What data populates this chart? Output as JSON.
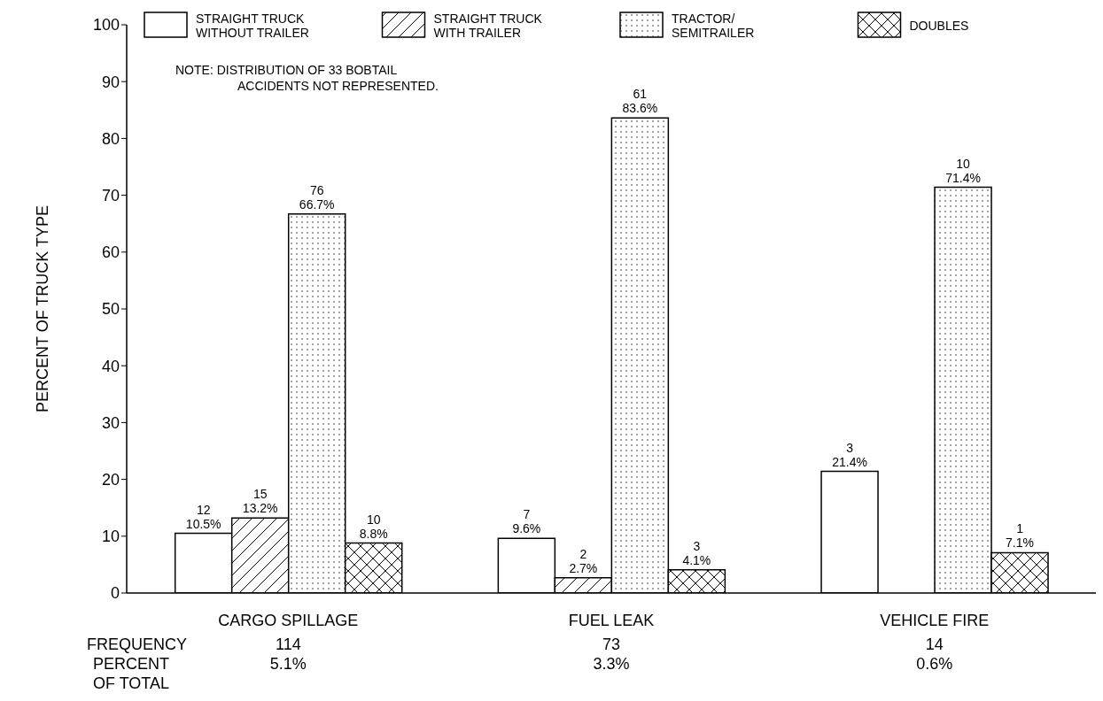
{
  "chart_data": {
    "type": "bar",
    "ylabel": "PERCENT OF TRUCK TYPE",
    "categories": [
      "CARGO SPILLAGE",
      "FUEL LEAK",
      "VEHICLE FIRE"
    ],
    "series": [
      {
        "name": "STRAIGHT TRUCK\nWITHOUT TRAILER",
        "color": "#000000",
        "values": [
          10.5,
          9.6,
          21.4
        ],
        "value_labels": [
          "12\n10.5%",
          "7\n9.6%",
          "3\n21.4%"
        ]
      },
      {
        "name": "STRAIGHT TRUCK\nWITH TRAILER",
        "color": "#000000",
        "values": [
          13.2,
          2.7,
          null
        ],
        "value_labels": [
          "15\n13.2%",
          "2\n2.7%",
          null
        ]
      },
      {
        "name": "TRACTOR/\nSEMITRAILER",
        "color": "#000000",
        "values": [
          66.7,
          83.6,
          71.4
        ],
        "value_labels": [
          "76\n66.7%",
          "61\n83.6%",
          "10\n71.4%"
        ]
      },
      {
        "name": "DOUBLES",
        "color": "#000000",
        "values": [
          8.8,
          4.1,
          7.1
        ],
        "value_labels": [
          "10\n8.8%",
          "3\n4.1%",
          "1\n7.1%"
        ]
      }
    ],
    "ylim": [
      0,
      100
    ],
    "yticks": [
      0,
      10,
      20,
      30,
      40,
      50,
      60,
      70,
      80,
      90,
      100
    ],
    "grid": false,
    "legend": "top",
    "annotations": [
      "NOTE:  DISTRIBUTION OF 33 BOBTAIL\nACCIDENTS NOT REPRESENTED.",
      "FREQUENCY",
      "PERCENT\nOF TOTAL",
      "114",
      "5.1%",
      "73",
      "3.3%",
      "14",
      "0.6%"
    ]
  }
}
